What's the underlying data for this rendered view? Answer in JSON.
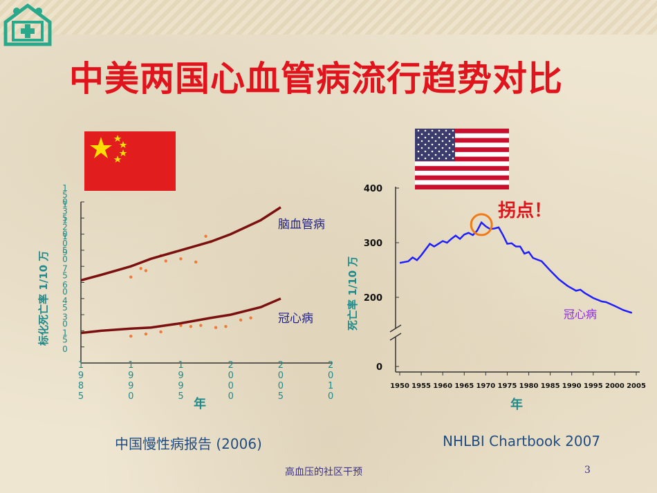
{
  "slide": {
    "title": "中美两国心血管病流行趋势对比",
    "footer": "高血压的社区干预",
    "page_number": "3",
    "logo_icon": "hospital-cross-icon",
    "accent_color": "#e0141c"
  },
  "chart_data": [
    {
      "type": "line",
      "country_flag": "china-flag-icon",
      "ylabel": "标化死亡率    1/10 万",
      "xlabel": "年",
      "x": [
        1985,
        1987,
        1990,
        1992,
        1995,
        1998,
        2000,
        2003,
        2005
      ],
      "ylim": [
        0,
        150
      ],
      "xlim": [
        1985,
        2010
      ],
      "xticks": [
        "1\n9\n8\n5",
        "1\n9\n9\n0",
        "1\n9\n9\n5",
        "2\n0\n0\n0",
        "2\n0\n0\n5",
        "2\n0\n1\n0"
      ],
      "yticks": [
        "1\n5\n0",
        "1\n3\n5",
        "1\n2\n0",
        "1\n0\n5",
        "9\n0",
        "7\n5",
        "6\n0",
        "4\n5",
        "3\n0",
        "1\n5",
        "0"
      ],
      "series": [
        {
          "name": "脑血管病",
          "color": "#7a1010",
          "values": [
            77,
            82,
            90,
            97,
            105,
            113,
            120,
            133,
            145
          ]
        },
        {
          "name": "冠心病",
          "color": "#7a1010",
          "values": [
            28,
            30,
            32,
            33,
            37,
            42,
            45,
            52,
            60
          ]
        }
      ],
      "scatter": [
        {
          "x": 1990,
          "y": 80
        },
        {
          "x": 1991,
          "y": 88
        },
        {
          "x": 1991.5,
          "y": 86
        },
        {
          "x": 1993,
          "y": 100
        },
        {
          "x": 1993.5,
          "y": 95
        },
        {
          "x": 1995,
          "y": 97
        },
        {
          "x": 1996.5,
          "y": 94
        },
        {
          "x": 1997.5,
          "y": 118
        },
        {
          "x": 1998,
          "y": 113
        },
        {
          "x": 1990,
          "y": 25
        },
        {
          "x": 1991.5,
          "y": 27
        },
        {
          "x": 1993,
          "y": 29
        },
        {
          "x": 1995,
          "y": 35
        },
        {
          "x": 1996,
          "y": 34
        },
        {
          "x": 1997,
          "y": 35
        },
        {
          "x": 1998.5,
          "y": 33
        },
        {
          "x": 1999.5,
          "y": 34
        },
        {
          "x": 2001,
          "y": 40
        },
        {
          "x": 2002,
          "y": 42
        }
      ],
      "scatter_color": "#f07a3a",
      "source": "中国慢性病报告   (2006)"
    },
    {
      "type": "line",
      "country_flag": "usa-flag-icon",
      "ylabel": "死亡率     1/10 万",
      "xlabel": "年",
      "yticks": [
        0,
        200,
        300,
        400
      ],
      "axis_break": true,
      "ylim": [
        0,
        400
      ],
      "xlim": [
        1950,
        2005
      ],
      "xticks": [
        1950,
        1955,
        1960,
        1965,
        1970,
        1975,
        1980,
        1985,
        1990,
        1995,
        2000,
        2005
      ],
      "series": [
        {
          "name": "冠心病",
          "color": "#1e1eff",
          "x": [
            1950,
            1952,
            1953,
            1954,
            1955,
            1957,
            1958,
            1960,
            1961,
            1962,
            1963,
            1964,
            1965,
            1966,
            1967,
            1968,
            1969,
            1970,
            1971,
            1972,
            1973,
            1974,
            1975,
            1976,
            1977,
            1978,
            1979,
            1980,
            1981,
            1983,
            1985,
            1987,
            1989,
            1991,
            1992,
            1993,
            1995,
            1997,
            1998,
            2000,
            2002,
            2004
          ],
          "values": [
            263,
            266,
            273,
            268,
            277,
            298,
            293,
            303,
            300,
            307,
            313,
            307,
            315,
            318,
            314,
            322,
            337,
            330,
            325,
            326,
            328,
            314,
            298,
            299,
            293,
            293,
            280,
            283,
            272,
            266,
            249,
            233,
            221,
            212,
            214,
            208,
            198,
            188,
            186,
            175,
            163,
            155
          ]
        }
      ],
      "annotation": {
        "label": "拐点！",
        "x": 1969,
        "y": 333,
        "color": "#e0141c"
      },
      "source": "NHLBI Chartbook 2007"
    }
  ]
}
